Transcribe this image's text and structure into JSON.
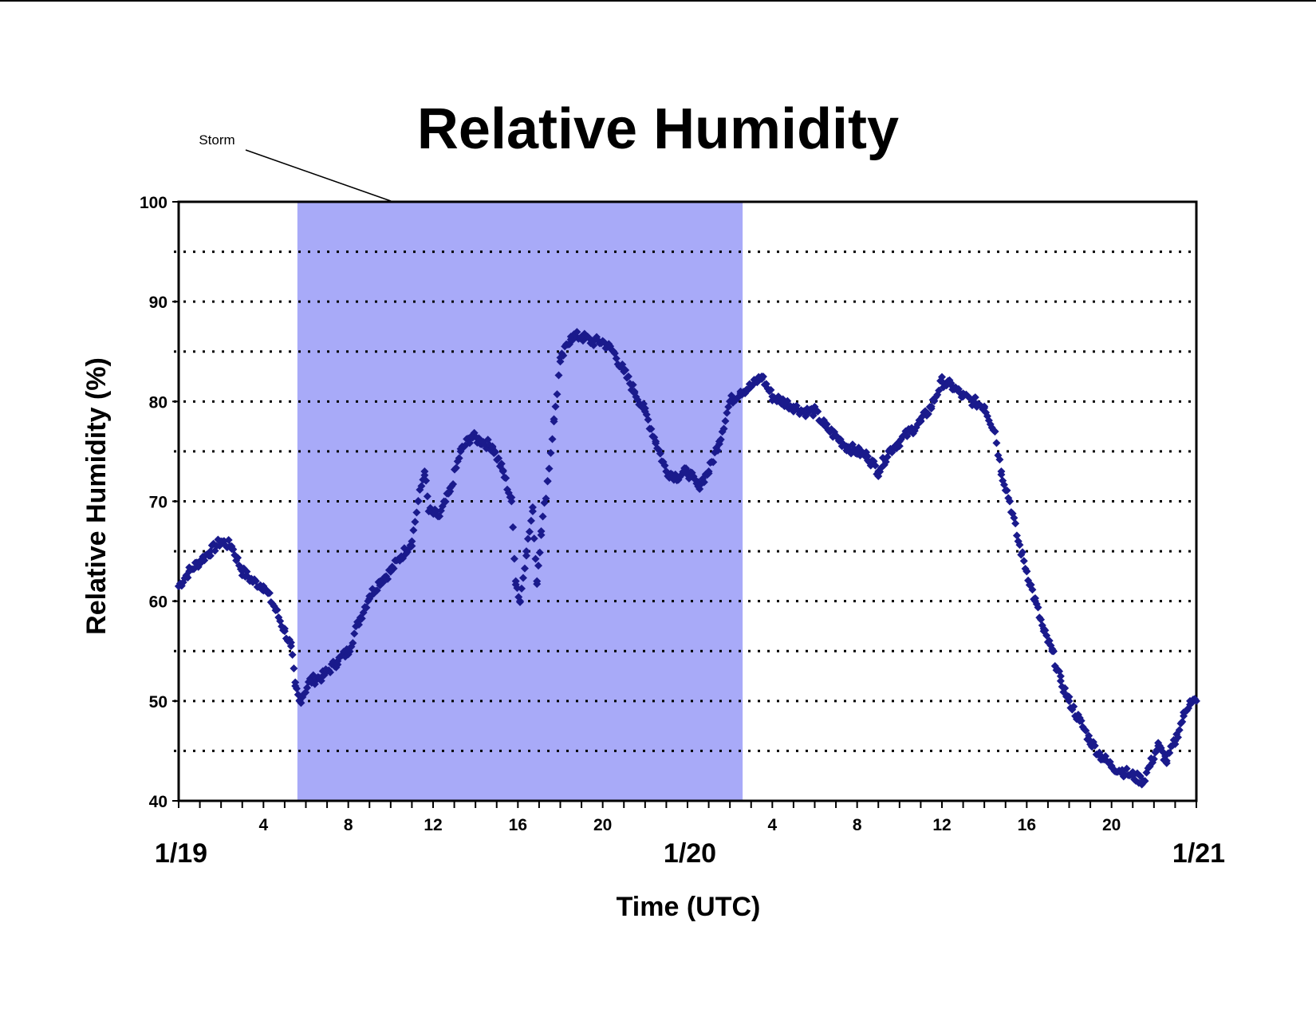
{
  "chart_data": {
    "type": "scatter",
    "title": "Relative Humidity",
    "xlabel": "Time (UTC)",
    "ylabel": "Relative Humidity (%)",
    "ylim": [
      40,
      100
    ],
    "yticks": [
      "100",
      "90",
      "80",
      "70",
      "60",
      "50",
      "40"
    ],
    "xlim_hours": [
      0,
      48
    ],
    "x_tick_labels": [
      {
        "hour": 4,
        "label": "4"
      },
      {
        "hour": 8,
        "label": "8"
      },
      {
        "hour": 12,
        "label": "12"
      },
      {
        "hour": 16,
        "label": "16"
      },
      {
        "hour": 20,
        "label": "20"
      },
      {
        "hour": 28,
        "label": "4"
      },
      {
        "hour": 32,
        "label": "8"
      },
      {
        "hour": 36,
        "label": "12"
      },
      {
        "hour": 40,
        "label": "16"
      },
      {
        "hour": 44,
        "label": "20"
      }
    ],
    "x_date_labels": [
      {
        "hour": 0,
        "label": "1/19"
      },
      {
        "hour": 24,
        "label": "1/20"
      },
      {
        "hour": 48,
        "label": "1/21"
      }
    ],
    "grid": "dotted horizontal lines every 5%",
    "marker": "diamond",
    "marker_color": "#1a1a8c",
    "shaded_region": {
      "label": "Storm",
      "x_start_hours": 5.6,
      "x_end_hours": 26.6,
      "color": "#a8aaf8"
    },
    "series": [
      {
        "points": [
          [
            0.0,
            61.5
          ],
          [
            0.5,
            63
          ],
          [
            1.0,
            64
          ],
          [
            1.5,
            65
          ],
          [
            2.0,
            66
          ],
          [
            2.5,
            65.5
          ],
          [
            3.0,
            63
          ],
          [
            3.5,
            62
          ],
          [
            4.0,
            61.5
          ],
          [
            4.5,
            59.5
          ],
          [
            5.0,
            57
          ],
          [
            5.3,
            55.5
          ],
          [
            5.5,
            51.5
          ],
          [
            5.7,
            50
          ],
          [
            6.2,
            52
          ],
          [
            6.8,
            52.5
          ],
          [
            7.5,
            54
          ],
          [
            8.0,
            55
          ],
          [
            8.5,
            58
          ],
          [
            9.0,
            60.5
          ],
          [
            9.5,
            62
          ],
          [
            10.0,
            63
          ],
          [
            10.5,
            64.5
          ],
          [
            11.0,
            66
          ],
          [
            11.3,
            70
          ],
          [
            11.6,
            73
          ],
          [
            11.8,
            69
          ],
          [
            12.3,
            68.5
          ],
          [
            12.8,
            71
          ],
          [
            13.3,
            75
          ],
          [
            13.8,
            76.5
          ],
          [
            14.3,
            76
          ],
          [
            14.8,
            75.5
          ],
          [
            15.3,
            73
          ],
          [
            15.7,
            70
          ],
          [
            15.9,
            62
          ],
          [
            16.1,
            60
          ],
          [
            16.4,
            65
          ],
          [
            16.7,
            69
          ],
          [
            16.9,
            62
          ],
          [
            17.1,
            67
          ],
          [
            17.4,
            72
          ],
          [
            17.7,
            78
          ],
          [
            18.0,
            84
          ],
          [
            18.5,
            86.5
          ],
          [
            19.0,
            86.5
          ],
          [
            19.5,
            86
          ],
          [
            20.0,
            86
          ],
          [
            20.5,
            85
          ],
          [
            21.0,
            83
          ],
          [
            21.5,
            81
          ],
          [
            22.0,
            79
          ],
          [
            22.5,
            76
          ],
          [
            23.0,
            73
          ],
          [
            23.5,
            72.5
          ],
          [
            24.0,
            73
          ],
          [
            24.5,
            71.5
          ],
          [
            25.0,
            73
          ],
          [
            25.5,
            76
          ],
          [
            26.0,
            80
          ],
          [
            26.5,
            81
          ],
          [
            27.0,
            81.5
          ],
          [
            27.5,
            82.5
          ],
          [
            28.0,
            80.5
          ],
          [
            28.5,
            80
          ],
          [
            29.0,
            79.5
          ],
          [
            29.5,
            79
          ],
          [
            30.0,
            79
          ],
          [
            30.5,
            77.5
          ],
          [
            31.0,
            76.5
          ],
          [
            31.5,
            75.5
          ],
          [
            32.0,
            75
          ],
          [
            32.5,
            74.5
          ],
          [
            33.0,
            73
          ],
          [
            33.5,
            75
          ],
          [
            34.0,
            76
          ],
          [
            34.5,
            77
          ],
          [
            35.0,
            78
          ],
          [
            35.5,
            79.5
          ],
          [
            36.0,
            82
          ],
          [
            36.5,
            81.5
          ],
          [
            37.0,
            80.5
          ],
          [
            37.5,
            80
          ],
          [
            38.0,
            79.5
          ],
          [
            38.5,
            77
          ],
          [
            38.8,
            73
          ],
          [
            39.2,
            70
          ],
          [
            39.6,
            66
          ],
          [
            40.0,
            63
          ],
          [
            40.4,
            60
          ],
          [
            40.8,
            57
          ],
          [
            41.2,
            55
          ],
          [
            41.6,
            52
          ],
          [
            42.0,
            50
          ],
          [
            42.5,
            48
          ],
          [
            43.0,
            46
          ],
          [
            43.5,
            44.5
          ],
          [
            44.0,
            43.5
          ],
          [
            44.5,
            43
          ],
          [
            45.0,
            42.5
          ],
          [
            45.5,
            42
          ],
          [
            45.8,
            43.5
          ],
          [
            46.2,
            45.5
          ],
          [
            46.6,
            44
          ],
          [
            47.0,
            46
          ],
          [
            47.4,
            48.5
          ],
          [
            47.7,
            50
          ],
          [
            48.0,
            50
          ]
        ]
      }
    ]
  }
}
